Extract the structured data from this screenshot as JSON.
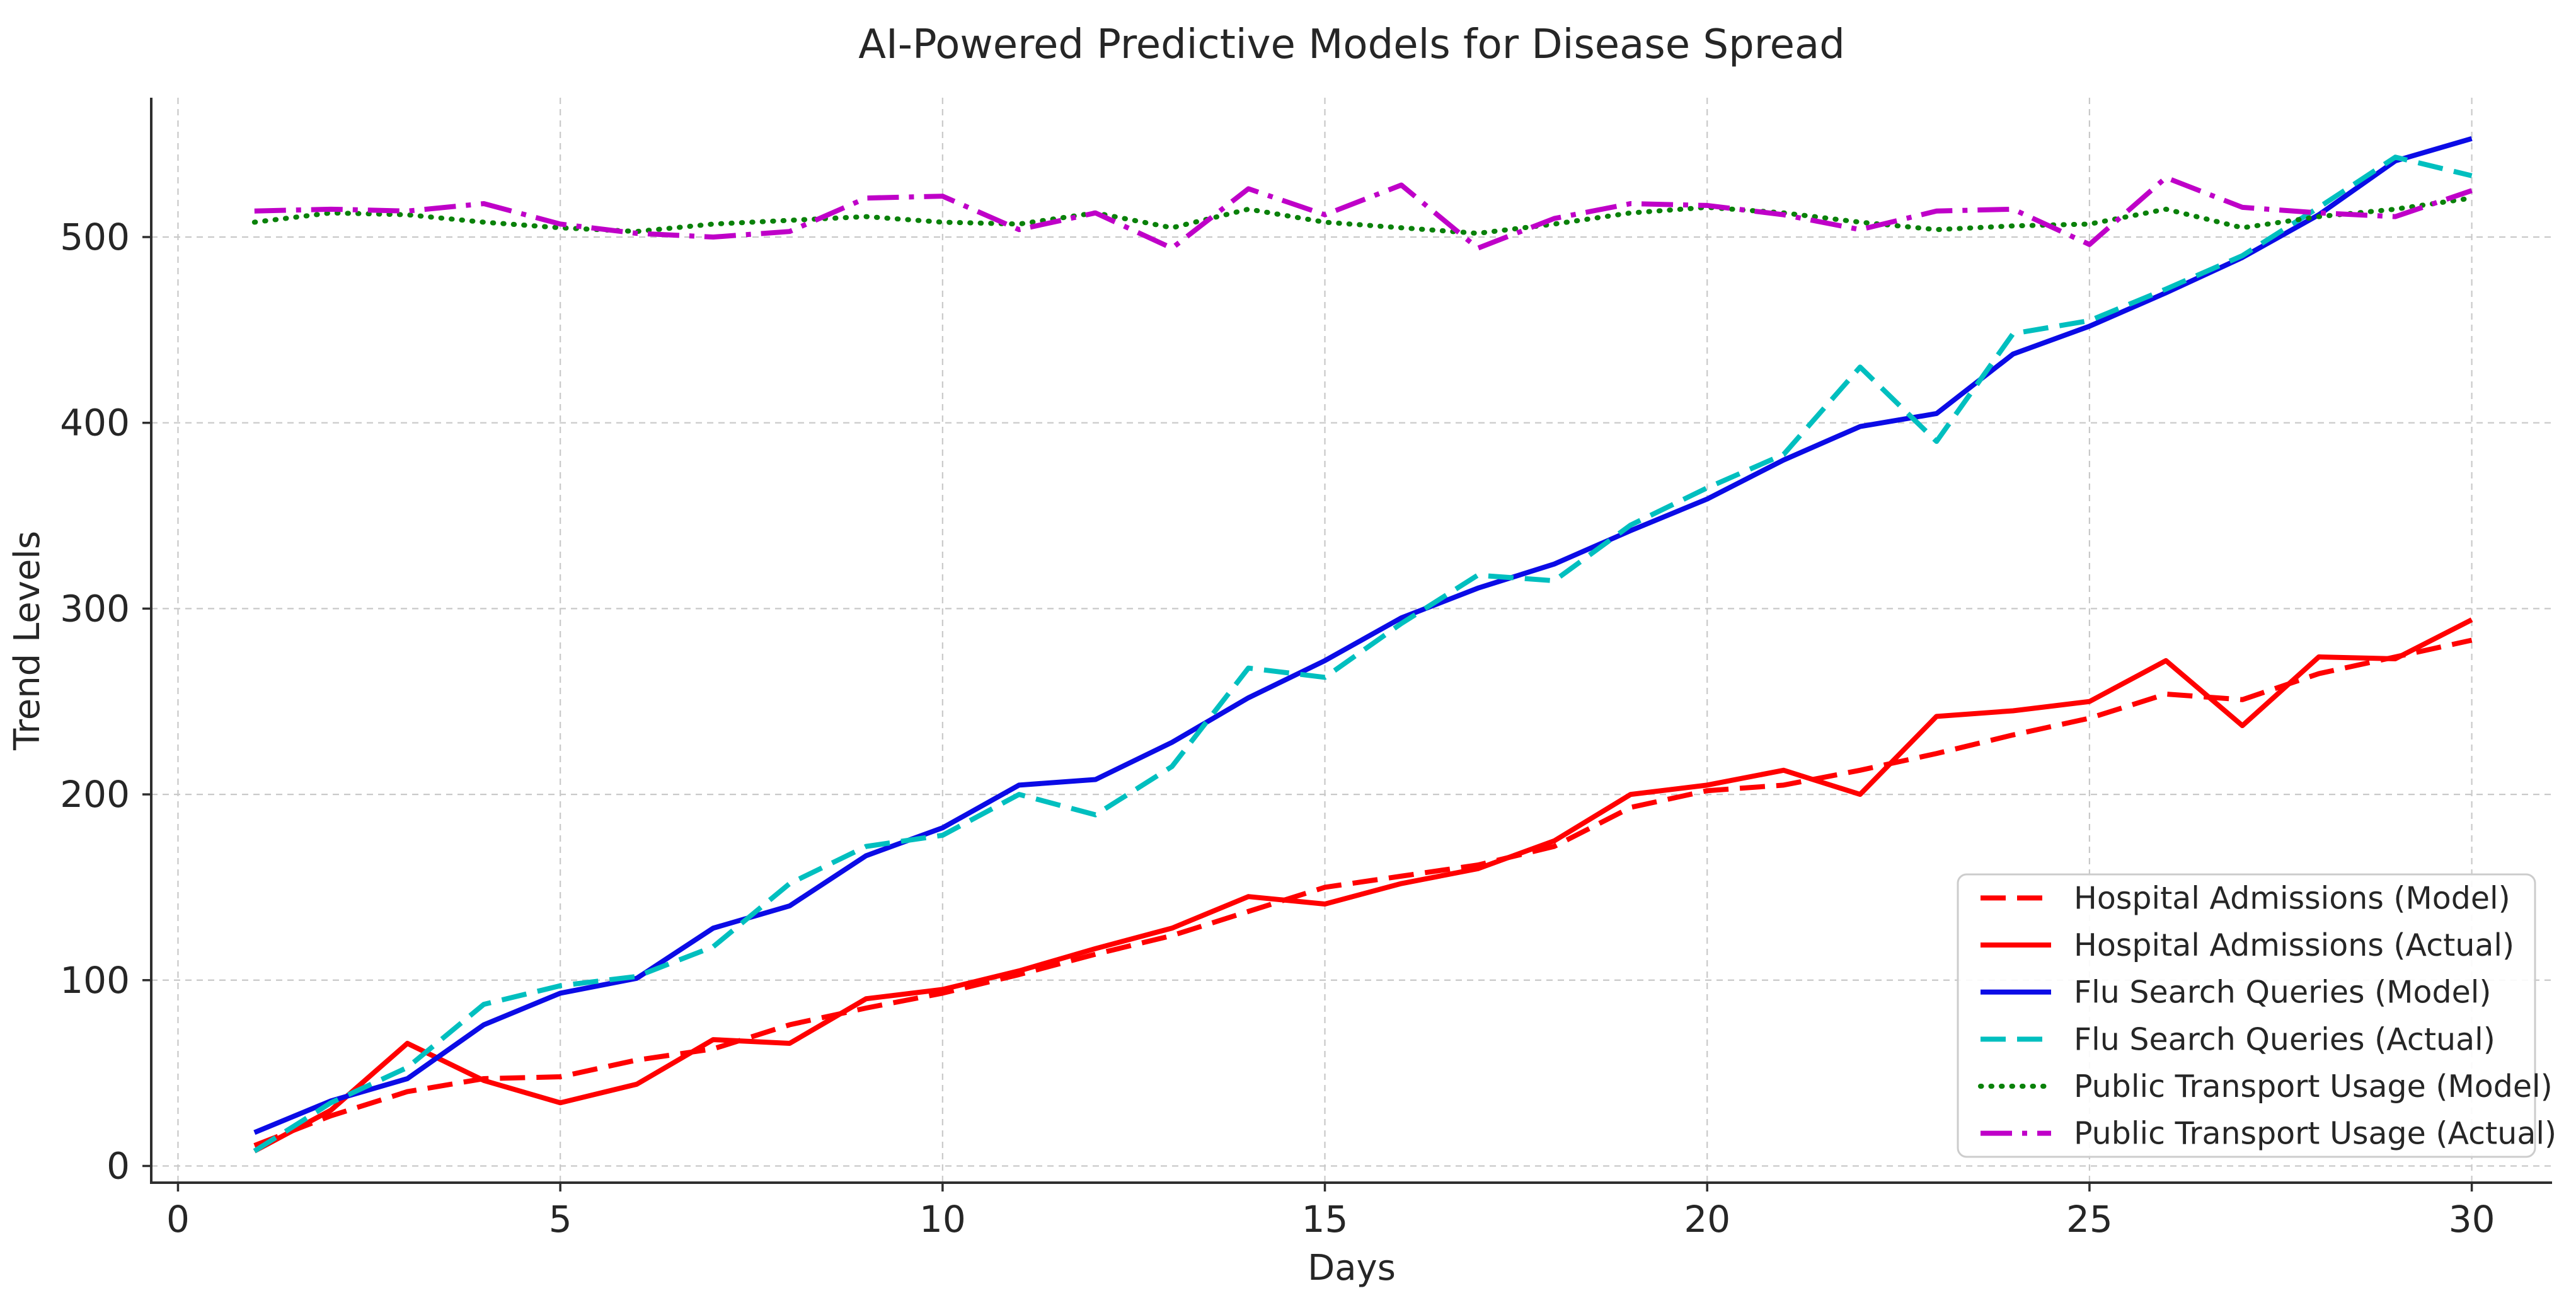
{
  "chart_data": {
    "type": "line",
    "title": "AI-Powered Predictive Models for Disease Spread",
    "xlabel": "Days",
    "ylabel": "Trend Levels",
    "x": [
      1,
      2,
      3,
      4,
      5,
      6,
      7,
      8,
      9,
      10,
      11,
      12,
      13,
      14,
      15,
      16,
      17,
      18,
      19,
      20,
      21,
      22,
      23,
      24,
      25,
      26,
      27,
      28,
      29,
      30
    ],
    "xticks": [
      0,
      5,
      10,
      15,
      20,
      25,
      30
    ],
    "yticks": [
      0,
      100,
      200,
      300,
      400,
      500
    ],
    "xlim": [
      -0.35,
      31.05
    ],
    "ylim": [
      -9,
      575
    ],
    "grid": true,
    "grid_color": "#c9c9c9",
    "axis_color": "#2e2e2e",
    "legend_position": "lower right",
    "series": [
      {
        "name": "Hospital Admissions (Model)",
        "color": "#ff0000",
        "style": "dashed",
        "values": [
          11,
          27,
          40,
          47,
          48,
          57,
          63,
          76,
          85,
          93,
          103,
          114,
          124,
          137,
          150,
          156,
          162,
          172,
          193,
          202,
          205,
          213,
          222,
          232,
          241,
          254,
          251,
          265,
          274,
          283
        ]
      },
      {
        "name": "Hospital Admissions (Actual)",
        "color": "#ff0000",
        "style": "solid",
        "values": [
          8,
          30,
          66,
          46,
          34,
          44,
          68,
          66,
          90,
          95,
          105,
          117,
          128,
          145,
          141,
          152,
          160,
          175,
          200,
          205,
          213,
          200,
          242,
          245,
          250,
          272,
          237,
          274,
          273,
          294
        ]
      },
      {
        "name": "Flu Search Queries (Model)",
        "color": "#0b0bE6",
        "style": "solid",
        "values": [
          18,
          35,
          47,
          76,
          93,
          101,
          128,
          140,
          167,
          182,
          205,
          208,
          228,
          252,
          272,
          295,
          311,
          324,
          342,
          359,
          380,
          398,
          405,
          437,
          452,
          470,
          489,
          512,
          541,
          553
        ]
      },
      {
        "name": "Flu Search Queries (Actual)",
        "color": "#00bfbf",
        "style": "dashed",
        "values": [
          8,
          34,
          53,
          87,
          97,
          102,
          118,
          152,
          172,
          178,
          200,
          189,
          215,
          268,
          263,
          292,
          318,
          315,
          345,
          365,
          383,
          430,
          390,
          448,
          455,
          472,
          490,
          516,
          543,
          533
        ]
      },
      {
        "name": "Public Transport Usage (Model)",
        "color": "#0a810a",
        "style": "dotted",
        "values": [
          508,
          513,
          512,
          508,
          505,
          503,
          507,
          509,
          511,
          508,
          507,
          513,
          505,
          515,
          508,
          505,
          502,
          507,
          513,
          516,
          513,
          508,
          504,
          506,
          507,
          515,
          505,
          511,
          515,
          521
        ]
      },
      {
        "name": "Public Transport Usage (Actual)",
        "color": "#bf00c8",
        "style": "dashdot",
        "values": [
          514,
          515,
          514,
          518,
          507,
          502,
          500,
          503,
          521,
          522,
          504,
          513,
          494,
          526,
          512,
          528,
          494,
          510,
          518,
          517,
          512,
          504,
          514,
          515,
          496,
          532,
          516,
          513,
          511,
          525
        ]
      }
    ]
  }
}
